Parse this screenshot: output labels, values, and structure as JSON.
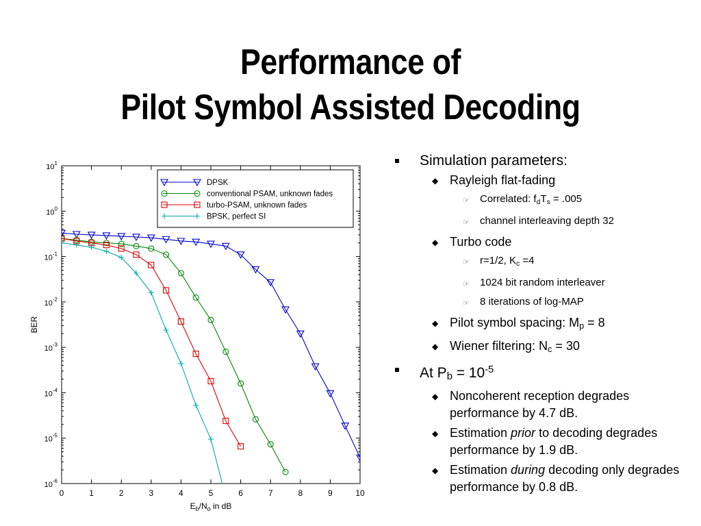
{
  "slide": {
    "title_line1": "Performance of",
    "title_line2": "Pilot Symbol Assisted Decoding"
  },
  "bullets": {
    "sim_params": "Simulation parameters:",
    "rayleigh": "Rayleigh flat-fading",
    "correlated_prefix": "Correlated: f",
    "correlated_sub_d": "d",
    "correlated_T": "T",
    "correlated_sub_s": "s",
    "correlated_value": " = .005",
    "interleaving": "channel interleaving depth 32",
    "turbo_code": "Turbo code",
    "rate_prefix": "r=1/2, K",
    "rate_sub": "c",
    "rate_value": " =4",
    "interleaver": "1024 bit random interleaver",
    "iterations": "8 iterations of log-MAP",
    "pilot_prefix": "Pilot symbol spacing: M",
    "pilot_sub": "p",
    "pilot_value": " = 8",
    "wiener_prefix": "Wiener filtering: N",
    "wiener_sub": "c",
    "wiener_value": " = 30",
    "at_prefix": "At P",
    "at_sub": "b",
    "at_mid": " = 10",
    "at_sup": "-5",
    "noncoherent": "Noncoherent reception degrades performance by 4.7 dB.",
    "prior_pre": "Estimation ",
    "prior_em": "prior",
    "prior_post": " to decoding degrades performance by 1.9 dB.",
    "during_pre": "Estimation ",
    "during_em": "during",
    "during_post": " decoding only degrades performance by 0.8 dB."
  },
  "chart_data": {
    "type": "line",
    "xlabel_main": "E",
    "xlabel_sub1": "b",
    "xlabel_mid": "/N",
    "xlabel_sub2": "o",
    "xlabel_tail": " in dB",
    "ylabel": "BER",
    "xlim": [
      0,
      10
    ],
    "ylim": [
      1e-06,
      10
    ],
    "yscale": "log",
    "grid": false,
    "legend_position": "top-right",
    "xticks": [
      "0",
      "1",
      "2",
      "3",
      "4",
      "5",
      "6",
      "7",
      "8",
      "9",
      "10"
    ],
    "yticks": [
      {
        "base": "10",
        "exp": "1"
      },
      {
        "base": "10",
        "exp": "0"
      },
      {
        "base": "10",
        "exp": "-1"
      },
      {
        "base": "10",
        "exp": "-2"
      },
      {
        "base": "10",
        "exp": "-3"
      },
      {
        "base": "10",
        "exp": "-4"
      },
      {
        "base": "10",
        "exp": "-5"
      },
      {
        "base": "10",
        "exp": "-6"
      }
    ],
    "series": [
      {
        "name": "DPSK",
        "color": "#0000cc",
        "marker": "triangle-down",
        "x": [
          0,
          0.5,
          1,
          1.5,
          2,
          2.5,
          3,
          3.5,
          4,
          4.5,
          5,
          5.5,
          6,
          6.5,
          7,
          7.5,
          8,
          8.5,
          9,
          9.5,
          10
        ],
        "y": [
          0.33,
          0.31,
          0.3,
          0.29,
          0.28,
          0.27,
          0.26,
          0.24,
          0.22,
          0.21,
          0.19,
          0.17,
          0.11,
          0.052,
          0.027,
          0.0068,
          0.002,
          0.00038,
          9.7e-05,
          1.87e-05,
          3.7e-06
        ]
      },
      {
        "name": "conventional PSAM, unknown fades",
        "color": "#008800",
        "marker": "circle",
        "x": [
          0,
          0.5,
          1,
          1.5,
          2,
          2.5,
          3,
          3.5,
          4,
          4.5,
          5,
          5.5,
          6,
          6.5,
          7,
          7.5
        ],
        "y": [
          0.25,
          0.23,
          0.21,
          0.2,
          0.19,
          0.17,
          0.15,
          0.11,
          0.043,
          0.0125,
          0.004,
          0.0008,
          0.00016,
          2.6e-05,
          7.3e-06,
          1.8e-06
        ]
      },
      {
        "name": "turbo-PSAM, unknown fades",
        "color": "#dd0000",
        "marker": "square",
        "x": [
          0,
          0.5,
          1,
          1.5,
          2,
          2.5,
          3,
          3.5,
          4,
          4.5,
          5,
          5.5,
          6
        ],
        "y": [
          0.25,
          0.22,
          0.2,
          0.18,
          0.15,
          0.11,
          0.065,
          0.018,
          0.0037,
          0.00072,
          0.00018,
          2.4e-05,
          6.6e-06
        ]
      },
      {
        "name": "BPSK, perfect SI",
        "color": "#00aaaa",
        "marker": "plus",
        "x": [
          0,
          0.5,
          1,
          1.5,
          2,
          2.5,
          3,
          3.5,
          4,
          4.5,
          5,
          5.4
        ],
        "y": [
          0.2,
          0.18,
          0.16,
          0.13,
          0.095,
          0.043,
          0.016,
          0.0024,
          0.00044,
          5.3e-05,
          9.5e-06,
          9e-07
        ]
      }
    ]
  }
}
